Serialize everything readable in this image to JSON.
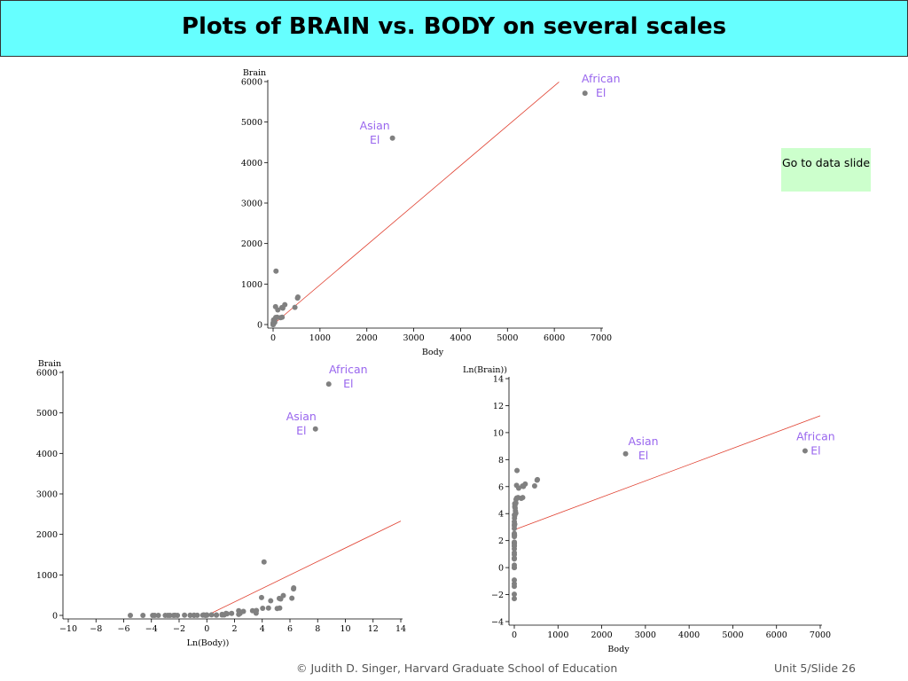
{
  "slide": {
    "title": "Plots of BRAIN vs. BODY on several scales",
    "button_label": "Go to data slide",
    "footer_left": "© Judith D. Singer, Harvard Graduate School of Education",
    "footer_right": "Unit 5/Slide 26"
  },
  "colors": {
    "title_bg": "#66ffff",
    "button_bg": "#ccffcc",
    "point": "#808080",
    "fit_line": "#e04030",
    "annotation": "#9966ee"
  },
  "chart_data": [
    {
      "type": "scatter",
      "xlabel": "Body",
      "ylabel": "Brain",
      "xlim": [
        0,
        7000
      ],
      "ylim": [
        0,
        6000
      ],
      "xticks": [
        0,
        1000,
        2000,
        3000,
        4000,
        5000,
        6000,
        7000
      ],
      "yticks": [
        0,
        1000,
        2000,
        3000,
        4000,
        5000,
        6000
      ],
      "fit_line": [
        [
          0,
          0
        ],
        [
          6100,
          5990
        ]
      ],
      "annotations": [
        {
          "text": [
            "African",
            "El"
          ],
          "x": 6654,
          "y": 5712
        },
        {
          "text": [
            "Asian",
            "El"
          ],
          "x": 2547,
          "y": 4603
        }
      ],
      "points": [
        [
          6654,
          5712
        ],
        [
          2547,
          4603
        ],
        [
          62,
          1320
        ],
        [
          52,
          440
        ],
        [
          100,
          360
        ],
        [
          187,
          419
        ],
        [
          207,
          406
        ],
        [
          250,
          490
        ],
        [
          465,
          423
        ],
        [
          521,
          655
        ],
        [
          529,
          680
        ],
        [
          160,
          169
        ],
        [
          192,
          180
        ],
        [
          10,
          115
        ],
        [
          35,
          56
        ],
        [
          27,
          115
        ],
        [
          4,
          50
        ],
        [
          3,
          25
        ],
        [
          1,
          6
        ],
        [
          1,
          12
        ],
        [
          2,
          12
        ],
        [
          0.5,
          4
        ],
        [
          0.1,
          2
        ],
        [
          6,
          48
        ],
        [
          0.9,
          3
        ],
        [
          3,
          11
        ],
        [
          3.5,
          10.8
        ],
        [
          1.4,
          12.5
        ],
        [
          0.3,
          1.9
        ],
        [
          0.75,
          5
        ],
        [
          0.8,
          10
        ],
        [
          2,
          6
        ],
        [
          4.3,
          39
        ],
        [
          0.01,
          0.25
        ],
        [
          0.02,
          0.4
        ],
        [
          0.06,
          1
        ],
        [
          0.12,
          1
        ],
        [
          0.2,
          5
        ],
        [
          0.4,
          1.2
        ],
        [
          0.05,
          0.14
        ],
        [
          0.004,
          0.1
        ],
        [
          0.02,
          0.3
        ],
        [
          11,
          48
        ],
        [
          10,
          25
        ],
        [
          14,
          98
        ],
        [
          36,
          120
        ],
        [
          86,
          180
        ],
        [
          56,
          175
        ],
        [
          0.9,
          2.6
        ],
        [
          0.4,
          6.4
        ],
        [
          1.0,
          6.6
        ],
        [
          0.3,
          2.0
        ]
      ]
    },
    {
      "type": "scatter",
      "xlabel": "Ln(Body))",
      "ylabel": "Brain",
      "xlim": [
        -10,
        14
      ],
      "ylim": [
        0,
        6000
      ],
      "xticks": [
        -10,
        -8,
        -6,
        -4,
        -2,
        0,
        2,
        4,
        6,
        8,
        10,
        12,
        14
      ],
      "yticks": [
        0,
        1000,
        2000,
        3000,
        4000,
        5000,
        6000
      ],
      "fit_line": [
        [
          0,
          0
        ],
        [
          14,
          2330
        ]
      ],
      "annotations": [
        {
          "text": [
            "African",
            "El"
          ],
          "x": 8.8,
          "y": 5712
        },
        {
          "text": [
            "Asian",
            "El"
          ],
          "x": 7.84,
          "y": 4603
        }
      ],
      "points": [
        [
          8.8,
          5712
        ],
        [
          7.84,
          4603
        ],
        [
          4.13,
          1320
        ],
        [
          3.95,
          440
        ],
        [
          4.61,
          360
        ],
        [
          5.23,
          419
        ],
        [
          5.33,
          406
        ],
        [
          5.52,
          490
        ],
        [
          6.14,
          423
        ],
        [
          6.26,
          655
        ],
        [
          6.27,
          680
        ],
        [
          5.08,
          169
        ],
        [
          5.26,
          180
        ],
        [
          2.3,
          115
        ],
        [
          3.56,
          56
        ],
        [
          3.3,
          115
        ],
        [
          1.39,
          50
        ],
        [
          1.1,
          25
        ],
        [
          0,
          6
        ],
        [
          0,
          12
        ],
        [
          0.69,
          12
        ],
        [
          -0.69,
          4
        ],
        [
          -2.3,
          2
        ],
        [
          1.79,
          48
        ],
        [
          -0.11,
          3
        ],
        [
          1.1,
          11
        ],
        [
          1.25,
          10.8
        ],
        [
          0.34,
          12.5
        ],
        [
          -1.2,
          1.9
        ],
        [
          -0.29,
          5
        ],
        [
          -0.22,
          10
        ],
        [
          0.69,
          6
        ],
        [
          1.46,
          39
        ],
        [
          -4.61,
          0.25
        ],
        [
          -3.91,
          0.4
        ],
        [
          -2.81,
          1
        ],
        [
          -2.12,
          1
        ],
        [
          -1.61,
          5
        ],
        [
          -0.92,
          1.2
        ],
        [
          -3.0,
          0.14
        ],
        [
          -5.52,
          0.1
        ],
        [
          -3.5,
          0.3
        ],
        [
          2.4,
          48
        ],
        [
          2.3,
          25
        ],
        [
          2.64,
          98
        ],
        [
          3.58,
          120
        ],
        [
          4.45,
          180
        ],
        [
          4.03,
          175
        ],
        [
          -0.11,
          2.6
        ],
        [
          -0.92,
          6.4
        ],
        [
          0,
          6.6
        ],
        [
          -1.2,
          2.0
        ],
        [
          -3.77,
          0.12
        ],
        [
          -2.66,
          0.8
        ],
        [
          -2.4,
          0.3
        ]
      ]
    },
    {
      "type": "scatter",
      "xlabel": "Body",
      "ylabel": "Ln(Brain))",
      "xlim": [
        0,
        7000
      ],
      "ylim": [
        -4,
        14
      ],
      "xticks": [
        0,
        1000,
        2000,
        3000,
        4000,
        5000,
        6000,
        7000
      ],
      "yticks": [
        -4,
        -2,
        0,
        2,
        4,
        6,
        8,
        10,
        12,
        14
      ],
      "fit_line": [
        [
          0,
          2.8
        ],
        [
          7000,
          11.25
        ]
      ],
      "annotations": [
        {
          "text": [
            "African",
            "El"
          ],
          "x": 6654,
          "y": 8.65
        },
        {
          "text": [
            "Asian",
            "El"
          ],
          "x": 2547,
          "y": 8.43
        }
      ],
      "points": [
        [
          6654,
          8.65
        ],
        [
          2547,
          8.43
        ],
        [
          62,
          7.19
        ],
        [
          52,
          6.09
        ],
        [
          100,
          5.89
        ],
        [
          187,
          6.04
        ],
        [
          207,
          6.01
        ],
        [
          250,
          6.19
        ],
        [
          465,
          6.05
        ],
        [
          521,
          6.48
        ],
        [
          529,
          6.52
        ],
        [
          160,
          5.13
        ],
        [
          192,
          5.19
        ],
        [
          10,
          4.74
        ],
        [
          35,
          4.03
        ],
        [
          27,
          4.74
        ],
        [
          4,
          3.91
        ],
        [
          3,
          3.22
        ],
        [
          1,
          1.79
        ],
        [
          1,
          2.48
        ],
        [
          2,
          2.48
        ],
        [
          0.5,
          1.39
        ],
        [
          0.1,
          0.69
        ],
        [
          6,
          3.87
        ],
        [
          0.9,
          1.1
        ],
        [
          3,
          2.4
        ],
        [
          3.5,
          2.38
        ],
        [
          1.4,
          2.53
        ],
        [
          0.3,
          0.64
        ],
        [
          0.75,
          1.61
        ],
        [
          0.8,
          2.3
        ],
        [
          2,
          1.79
        ],
        [
          4.3,
          3.66
        ],
        [
          0.01,
          -1.39
        ],
        [
          0.02,
          -0.92
        ],
        [
          0.06,
          0
        ],
        [
          0.12,
          0
        ],
        [
          0.2,
          1.61
        ],
        [
          0.4,
          0.18
        ],
        [
          0.05,
          -1.97
        ],
        [
          0.004,
          -2.3
        ],
        [
          0.02,
          -1.2
        ],
        [
          11,
          3.87
        ],
        [
          10,
          3.22
        ],
        [
          14,
          4.58
        ],
        [
          36,
          4.79
        ],
        [
          86,
          5.19
        ],
        [
          56,
          5.16
        ],
        [
          0.9,
          0.96
        ],
        [
          0.4,
          1.86
        ],
        [
          1.0,
          1.89
        ],
        [
          0.3,
          0.69
        ],
        [
          0.5,
          2.9
        ],
        [
          0.6,
          3.1
        ],
        [
          0.7,
          3.4
        ],
        [
          20,
          4.41
        ],
        [
          25,
          4.2
        ],
        [
          40,
          5.05
        ],
        [
          12,
          4.49
        ]
      ]
    }
  ]
}
